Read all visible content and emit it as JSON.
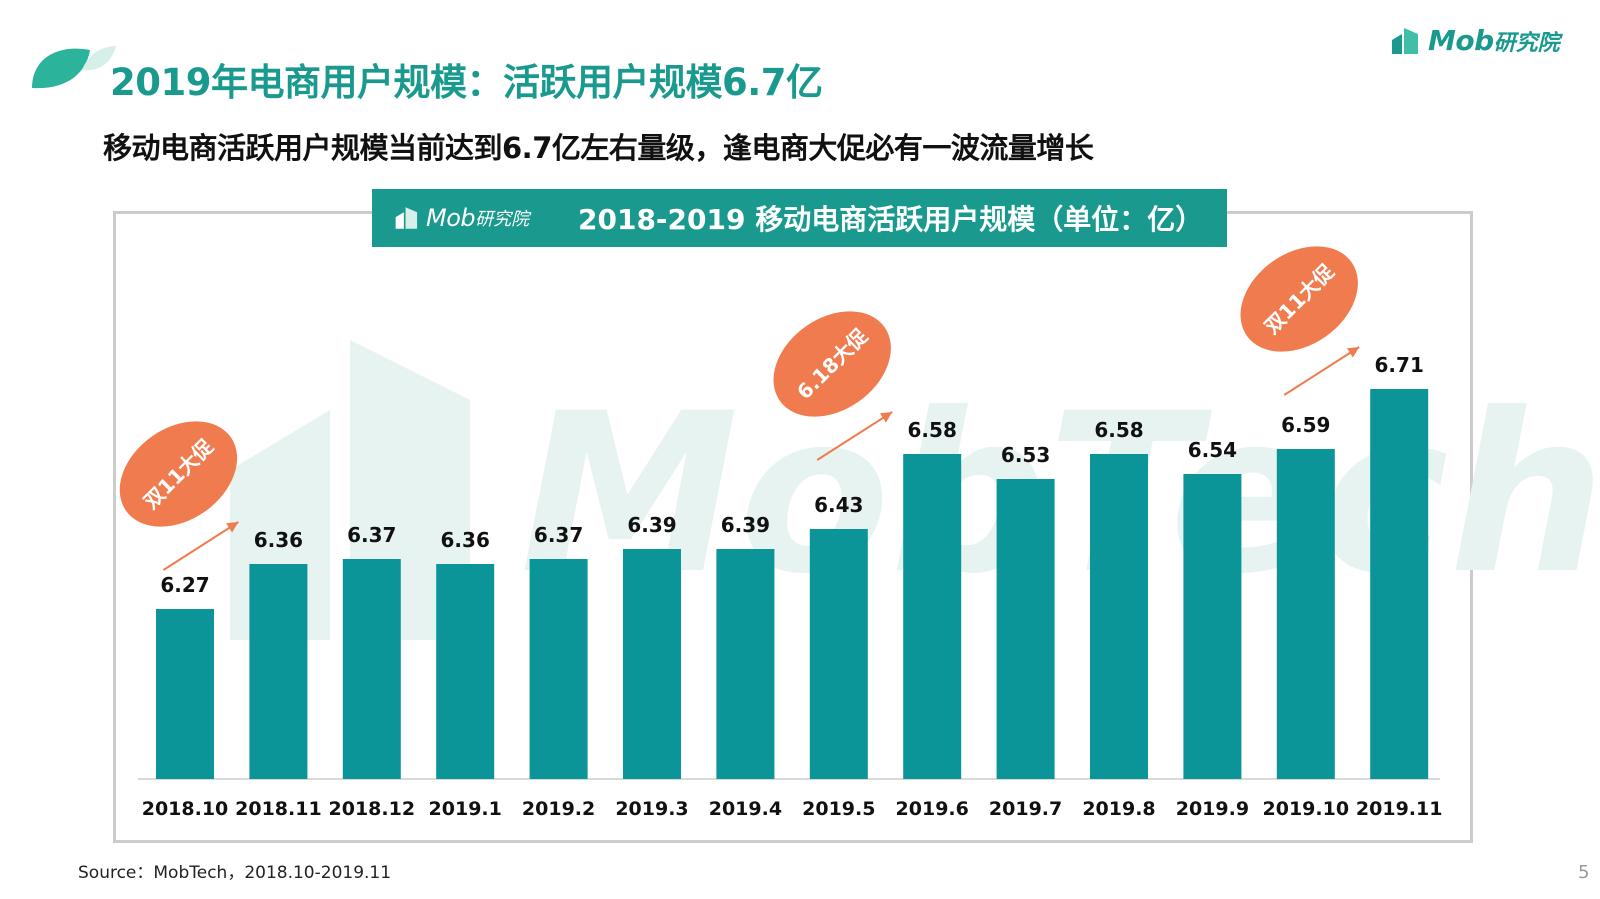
{
  "title": "2019年电商用户规模：活跃用户规模6.7亿",
  "headline": "移动电商活跃用户规模当前达到6.7亿左右量级，逢电商大促必有一波流量增长",
  "logo": {
    "brand": "Mob",
    "brand_cn": "研究院"
  },
  "source": "Source：MobTech，2018.10-2019.11",
  "page_number": "5",
  "watermark": "MobTech",
  "colors": {
    "bar": "#0b9599",
    "accent": "#1a9a8f",
    "promo": "#f07b4e",
    "watermark": "#e6f3f1"
  },
  "chart_data": {
    "type": "bar",
    "title": "2018-2019 移动电商活跃用户规模（单位：亿）",
    "categories": [
      "2018.10",
      "2018.11",
      "2018.12",
      "2019.1",
      "2019.2",
      "2019.3",
      "2019.4",
      "2019.5",
      "2019.6",
      "2019.7",
      "2019.8",
      "2019.9",
      "2019.10",
      "2019.11"
    ],
    "values": [
      6.27,
      6.36,
      6.37,
      6.36,
      6.37,
      6.39,
      6.39,
      6.43,
      6.58,
      6.53,
      6.58,
      6.54,
      6.59,
      6.71
    ],
    "value_labels": [
      "6.27",
      "6.36",
      "6.37",
      "6.36",
      "6.37",
      "6.39",
      "6.39",
      "6.43",
      "6.58",
      "6.53",
      "6.58",
      "6.54",
      "6.59",
      "6.71"
    ],
    "grid": false,
    "annotations": [
      {
        "text": "双11大促",
        "category": "2018.11"
      },
      {
        "text": "6.18大促",
        "category": "2019.6"
      },
      {
        "text": "双11大促",
        "category": "2019.11"
      }
    ]
  }
}
